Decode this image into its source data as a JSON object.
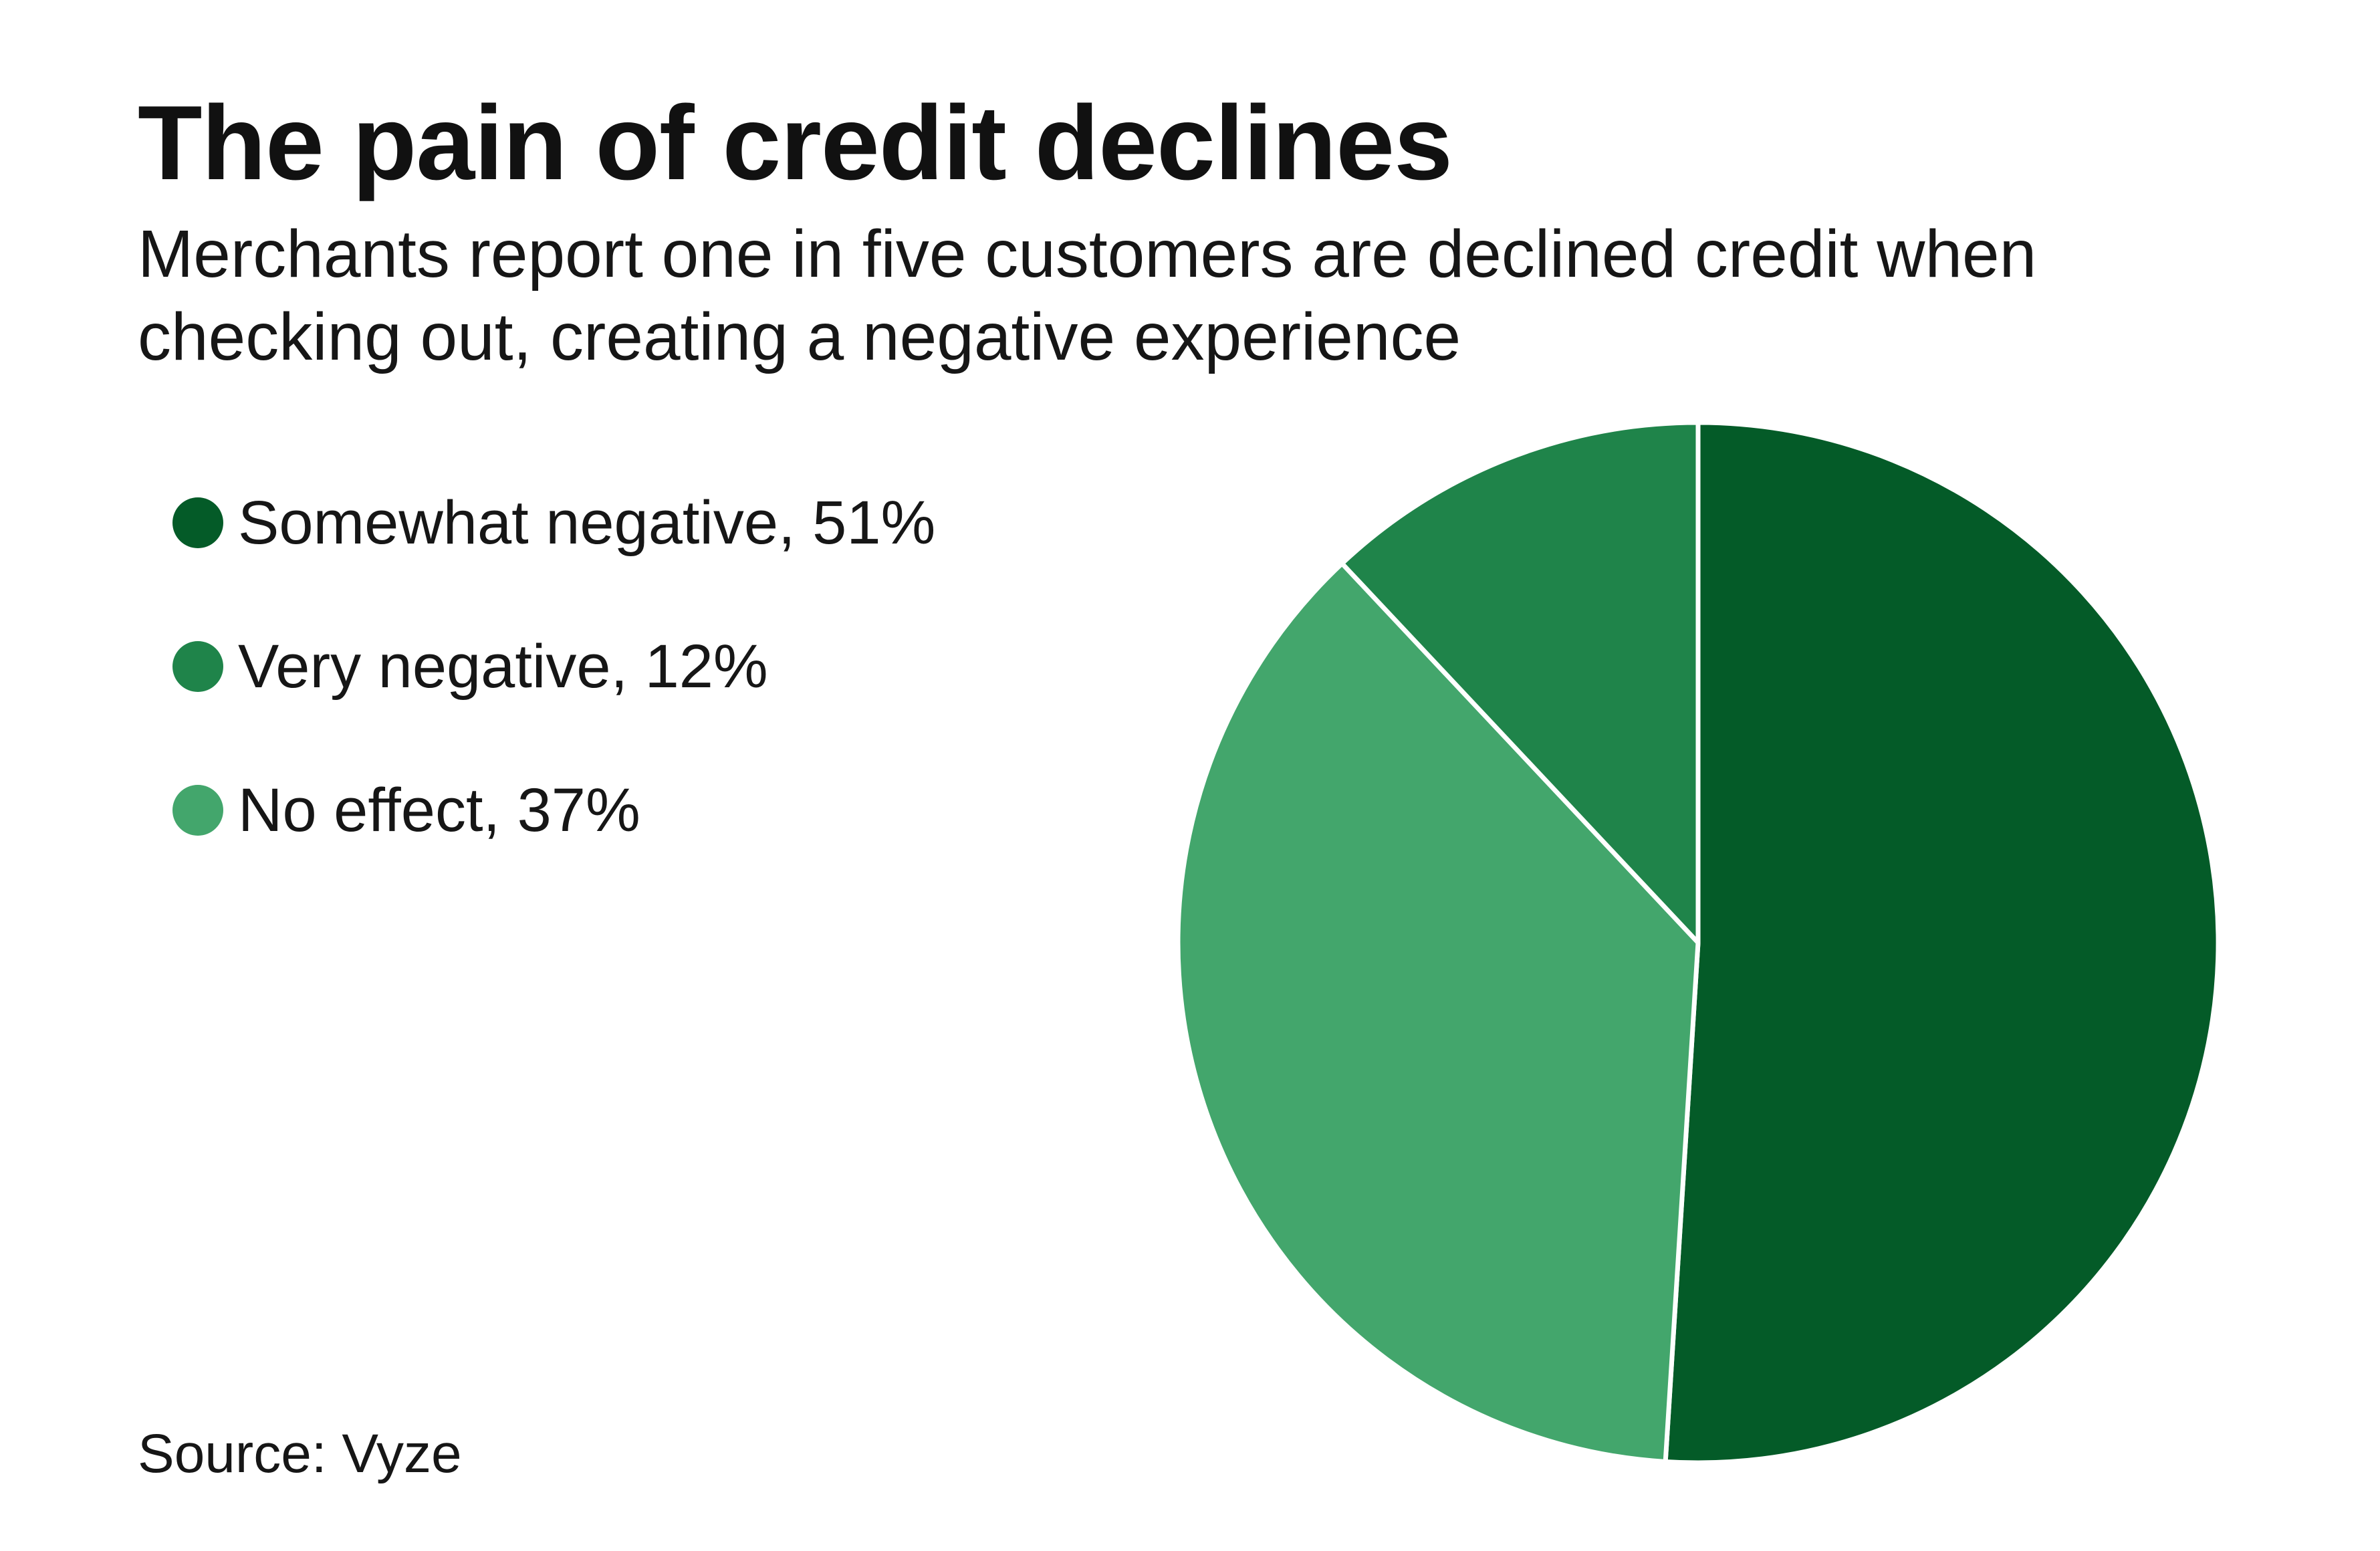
{
  "chart_data": {
    "type": "pie",
    "title": "The pain of credit declines",
    "subtitle": "Merchants report one in five customers are declined credit when checking out, creating a negative experience",
    "slices": [
      {
        "label": "Somewhat negative",
        "value": 51,
        "color": "#045b28",
        "legend_text": "Somewhat negative, 51%"
      },
      {
        "label": "No effect",
        "value": 37,
        "color": "#43a66c",
        "legend_text": "No effect, 37%"
      },
      {
        "label": "Very negative",
        "value": 12,
        "color": "#1f844a",
        "legend_text": "Very negative, 12%"
      }
    ],
    "legend": {
      "placement": "left",
      "items": [
        {
          "text": "Somewhat negative, 51%",
          "color": "#045b28"
        },
        {
          "text": "Very negative, 12%",
          "color": "#1f844a"
        },
        {
          "text": "No effect, 37%",
          "color": "#43a66c"
        }
      ]
    },
    "source": "Source: Vyze"
  }
}
